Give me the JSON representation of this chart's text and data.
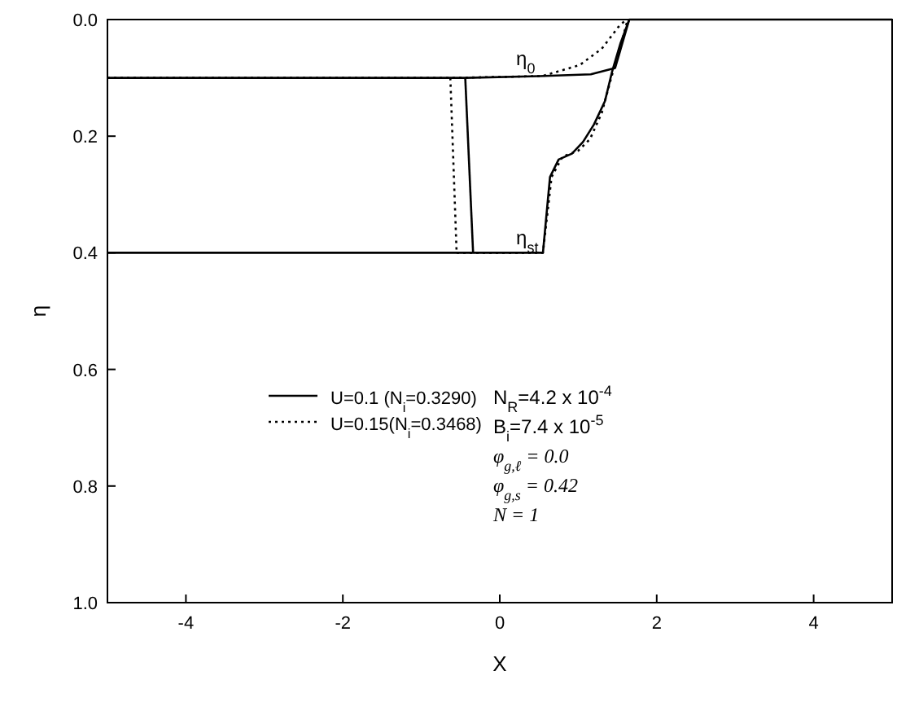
{
  "chart_data": {
    "type": "line",
    "xlabel": "X",
    "ylabel": "η",
    "xlim": [
      -5,
      5
    ],
    "xticks": [
      -4,
      -2,
      0,
      2,
      4
    ],
    "ylim": [
      1.0,
      0.0
    ],
    "yticks": [
      {
        "value": 0,
        "label": "0.0"
      },
      {
        "value": 0.2,
        "label": "0.2"
      },
      {
        "value": 0.4,
        "label": "0.4"
      },
      {
        "value": 0.6,
        "label": "0.6"
      },
      {
        "value": 0.8,
        "label": "0.8"
      },
      {
        "value": 1.0,
        "label": "1.0"
      }
    ],
    "grid": false,
    "legend": "center",
    "series": [
      {
        "name": "U=0.1  (N$_{i}$=0.3290)",
        "color": "#000000",
        "line_style": "solid",
        "x": [
          -5,
          -0.44,
          0.5,
          1.16,
          1.47,
          1.65,
          5
        ],
        "values": [
          0.1,
          0.1,
          0.097,
          0.094,
          0.083,
          0,
          0
        ]
      },
      {
        "color": "#000000",
        "line_style": "solid",
        "x": [
          -5,
          0.55,
          0.64,
          0.75,
          0.92,
          1.06,
          1.2,
          1.34,
          1.43,
          1.54,
          1.65
        ],
        "values": [
          0.4,
          0.4,
          0.27,
          0.24,
          0.23,
          0.21,
          0.18,
          0.14,
          0.09,
          0.04,
          0
        ]
      },
      {
        "color": "#000000",
        "line_style": "solid",
        "x": [
          -0.44,
          -0.34
        ],
        "values": [
          0.1,
          0.4
        ]
      },
      {
        "name": "U=0.15(N$_{i}$=0.3468)",
        "color": "#000000",
        "line_style": "dotted",
        "x": [
          -5,
          -0.63,
          0.54,
          1.02,
          1.3,
          1.51,
          1.61
        ],
        "values": [
          0.1,
          0.1,
          0.097,
          0.078,
          0.05,
          0.013,
          0
        ]
      },
      {
        "color": "#000000",
        "line_style": "dotted",
        "x": [
          -0.55,
          0.55,
          0.66,
          0.8,
          1.0,
          1.15,
          1.3,
          1.42,
          1.55,
          1.63
        ],
        "values": [
          0.4,
          0.4,
          0.27,
          0.235,
          0.225,
          0.205,
          0.16,
          0.1,
          0.04,
          0
        ]
      },
      {
        "color": "#000000",
        "line_style": "dotted",
        "x": [
          -0.63,
          -0.55
        ],
        "values": [
          0.1,
          0.4
        ]
      }
    ],
    "annotations": [
      "η$_{0}$",
      "η$_{st}$",
      "N$_{R}$=4.2 x 10$^{-4}$",
      "B$_{i}$=7.4 x 10$^{-5}$",
      "φ$_{g,ℓ}$ = 0.0",
      "φ$_{g,s}$ = 0.42",
      "N = 1"
    ]
  }
}
